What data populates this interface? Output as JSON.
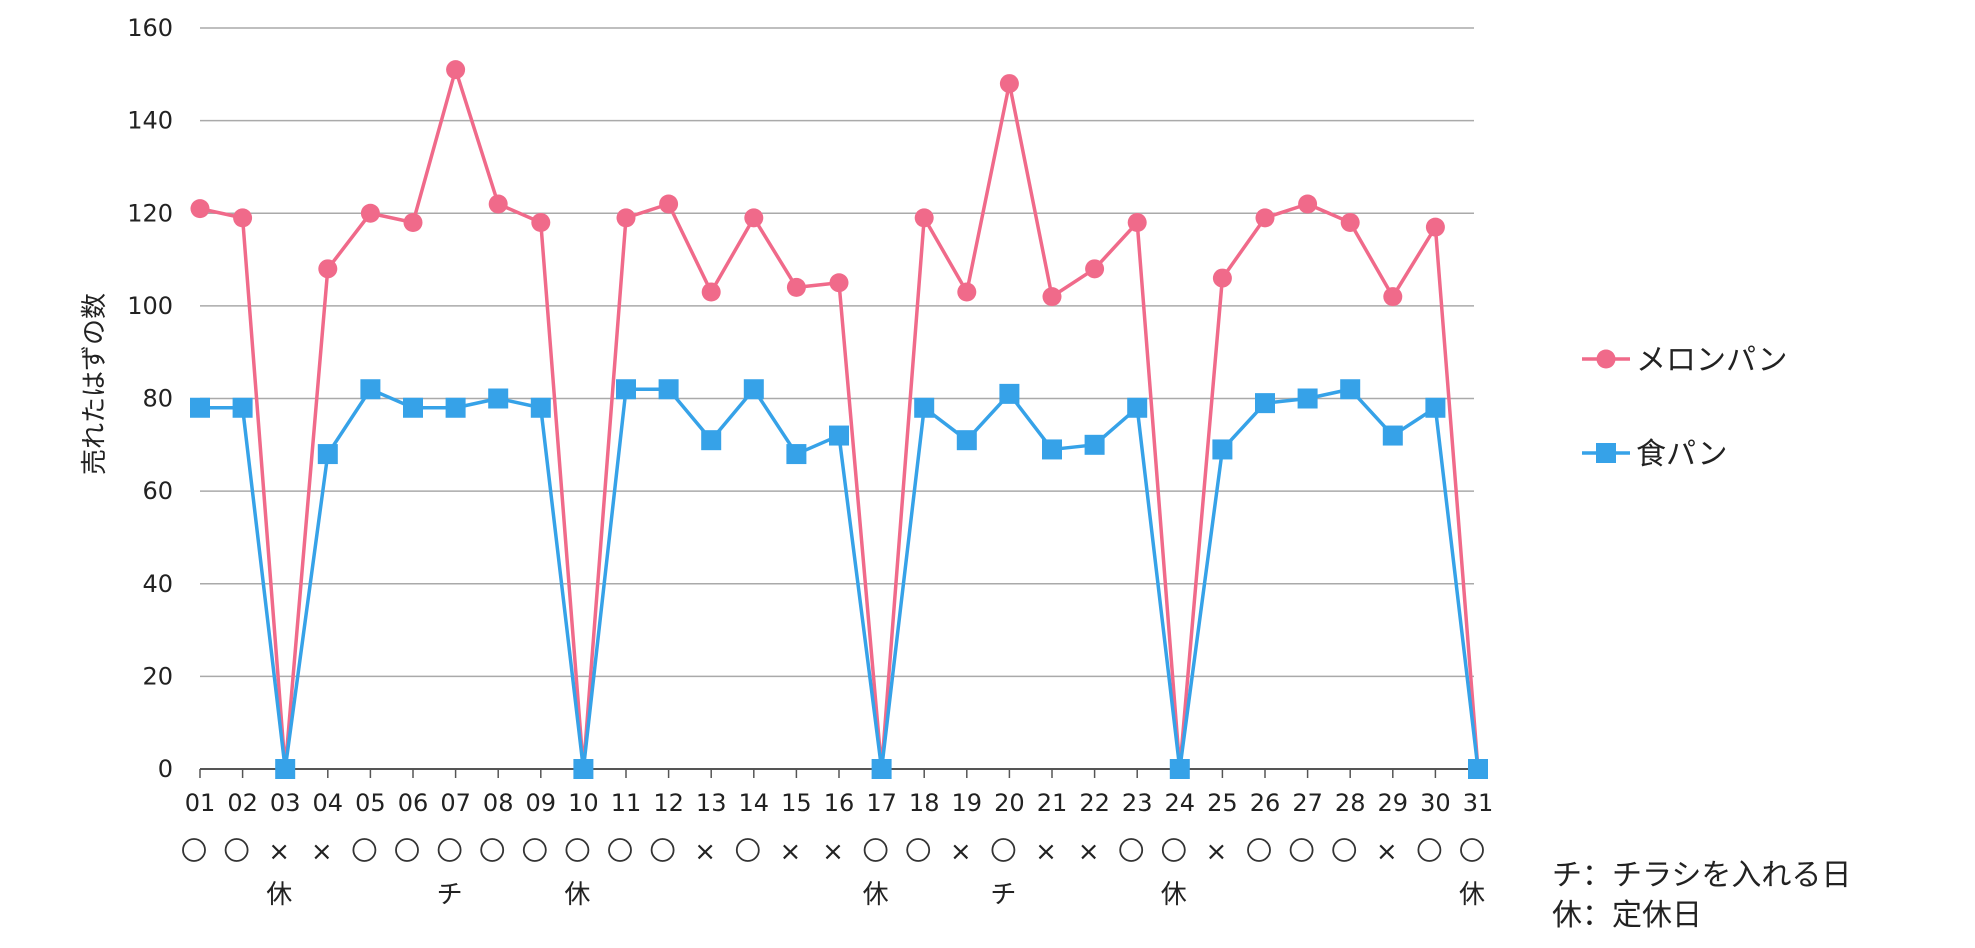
{
  "chart_data": {
    "type": "line",
    "title": "",
    "xlabel": "",
    "ylabel": "売れたはずの数",
    "ylim": [
      0,
      160
    ],
    "yticks": [
      "0",
      "20",
      "40",
      "60",
      "80",
      "100",
      "120",
      "140",
      "160"
    ],
    "grid": true,
    "legend_position": "right",
    "categories": [
      "01",
      "02",
      "03",
      "04",
      "05",
      "06",
      "07",
      "08",
      "09",
      "10",
      "11",
      "12",
      "13",
      "14",
      "15",
      "16",
      "17",
      "18",
      "19",
      "20",
      "21",
      "22",
      "23",
      "24",
      "25",
      "26",
      "27",
      "28",
      "29",
      "30",
      "31"
    ],
    "series": [
      {
        "name": "メロンパン",
        "color": "#f06a8a",
        "marker": "circle",
        "values": [
          121,
          119,
          0,
          108,
          120,
          118,
          151,
          122,
          118,
          0,
          119,
          122,
          103,
          119,
          104,
          105,
          0,
          119,
          103,
          148,
          102,
          108,
          118,
          0,
          106,
          119,
          122,
          118,
          102,
          117,
          0
        ]
      },
      {
        "name": "食パン",
        "color": "#36a2e8",
        "marker": "square",
        "values": [
          78,
          78,
          0,
          68,
          82,
          78,
          78,
          80,
          78,
          0,
          82,
          82,
          71,
          82,
          68,
          72,
          0,
          78,
          71,
          81,
          69,
          70,
          78,
          0,
          69,
          79,
          80,
          82,
          72,
          78,
          0
        ]
      }
    ],
    "row_marks": [
      "○",
      "○",
      "×",
      "×",
      "○",
      "○",
      "○",
      "○",
      "○",
      "○",
      "○",
      "○",
      "×",
      "○",
      "×",
      "×",
      "○",
      "○",
      "×",
      "○",
      "×",
      "×",
      "○",
      "○",
      "×",
      "○",
      "○",
      "○",
      "×",
      "○",
      "○"
    ],
    "row_notes": [
      "",
      "",
      "休",
      "",
      "",
      "",
      "チ",
      "",
      "",
      "休",
      "",
      "",
      "",
      "",
      "",
      "",
      "休",
      "",
      "",
      "チ",
      "",
      "",
      "",
      "休",
      "",
      "",
      "",
      "",
      "",
      "",
      "休"
    ]
  },
  "notes": {
    "line1": "チ：チラシを入れる日",
    "line2": "休：定休日"
  }
}
